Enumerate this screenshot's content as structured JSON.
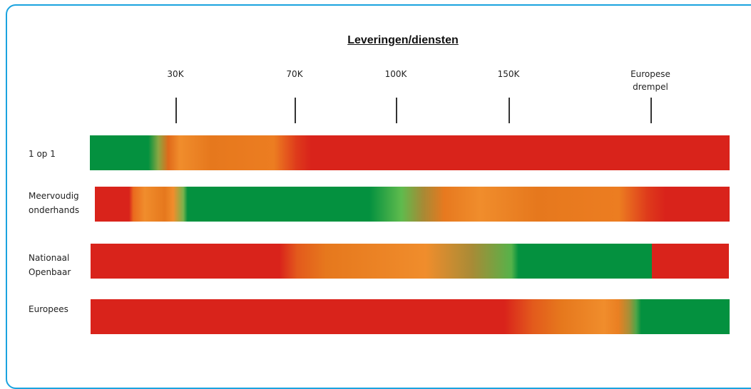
{
  "title": "Leveringen/diensten",
  "thresholds": [
    {
      "label_lines": [
        "30K"
      ]
    },
    {
      "label_lines": [
        "70K"
      ]
    },
    {
      "label_lines": [
        "100K"
      ]
    },
    {
      "label_lines": [
        "150K"
      ]
    },
    {
      "label_lines": [
        "Europese",
        "drempel"
      ]
    }
  ],
  "rows": [
    {
      "label_lines": [
        "1 op 1"
      ]
    },
    {
      "label_lines": [
        "Meervoudig",
        "onderhands"
      ]
    },
    {
      "label_lines": [
        "Nationaal",
        "Openbaar"
      ]
    },
    {
      "label_lines": [
        "Europees"
      ]
    }
  ],
  "colors": {
    "green": "#04913f",
    "orange": "#ec7d21",
    "red": "#d9231b",
    "frame": "#1aa3df"
  }
}
